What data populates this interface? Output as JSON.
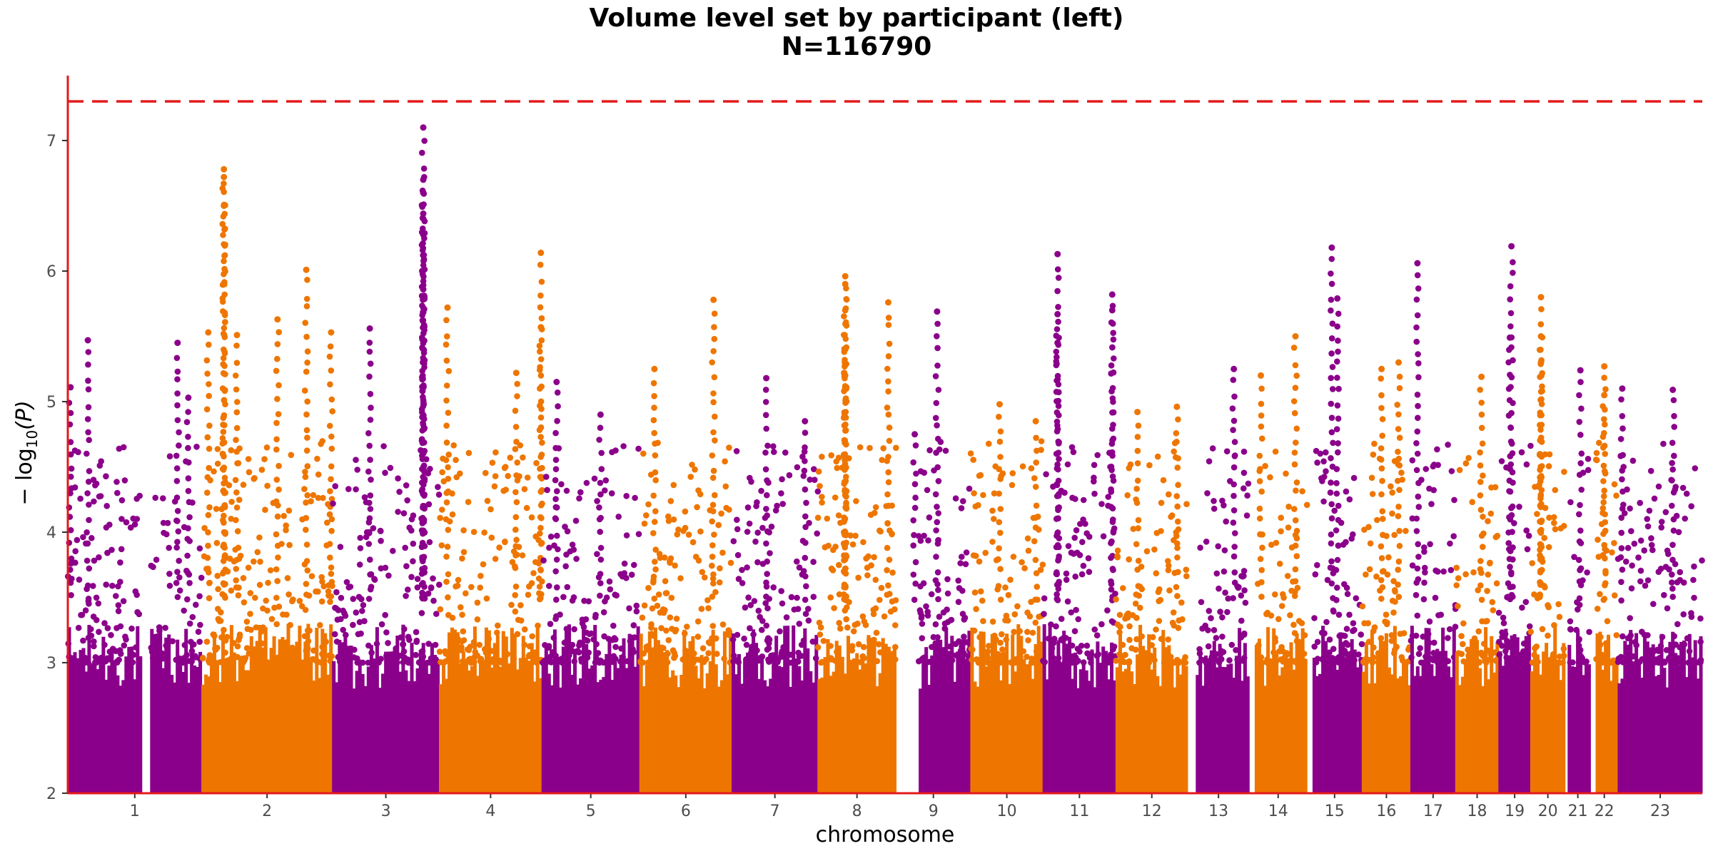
{
  "chart_data": {
    "type": "scatter",
    "title": "Volume level set by participant (left)",
    "subtitle": "N=116790",
    "xlabel": "chromosome",
    "ylabel_parts": {
      "prefix": "− log",
      "subscript": "10",
      "suffix": "(P)"
    },
    "ylim": [
      2,
      7.5
    ],
    "y_ticks": [
      2,
      3,
      4,
      5,
      6,
      7
    ],
    "threshold": 7.3,
    "colors": {
      "odd": "#8b008b",
      "even": "#ee7600",
      "threshold": "#e31a1c",
      "axis": "#e31a1c"
    },
    "chromosomes": [
      {
        "label": "1",
        "width": 248,
        "peaks": [
          {
            "pos": 0.02,
            "y": 5.11
          },
          {
            "pos": 0.15,
            "y": 5.47
          },
          {
            "pos": 0.82,
            "y": 5.45
          },
          {
            "pos": 0.9,
            "y": 5.03
          }
        ],
        "gap": [
          0.55,
          0.62
        ]
      },
      {
        "label": "2",
        "width": 242,
        "peaks": [
          {
            "pos": 0.05,
            "y": 5.53
          },
          {
            "pos": 0.17,
            "y": 6.78
          },
          {
            "pos": 0.17,
            "y": 6.72
          },
          {
            "pos": 0.17,
            "y": 6.5
          },
          {
            "pos": 0.27,
            "y": 5.51
          },
          {
            "pos": 0.58,
            "y": 5.63
          },
          {
            "pos": 0.8,
            "y": 6.01
          },
          {
            "pos": 0.99,
            "y": 5.53
          }
        ]
      },
      {
        "label": "3",
        "width": 198,
        "peaks": [
          {
            "pos": 0.35,
            "y": 5.56
          },
          {
            "pos": 0.85,
            "y": 7.1
          },
          {
            "pos": 0.85,
            "y": 6.7
          },
          {
            "pos": 0.85,
            "y": 6.6
          },
          {
            "pos": 0.85,
            "y": 6.44
          },
          {
            "pos": 0.85,
            "y": 6.28
          },
          {
            "pos": 0.85,
            "y": 5.86
          }
        ]
      },
      {
        "label": "4",
        "width": 190,
        "peaks": [
          {
            "pos": 0.08,
            "y": 5.72
          },
          {
            "pos": 0.75,
            "y": 5.22
          },
          {
            "pos": 0.99,
            "y": 6.14
          },
          {
            "pos": 0.99,
            "y": 5.57
          }
        ]
      },
      {
        "label": "5",
        "width": 181,
        "peaks": [
          {
            "pos": 0.15,
            "y": 5.15
          },
          {
            "pos": 0.6,
            "y": 4.9
          }
        ]
      },
      {
        "label": "6",
        "width": 171,
        "peaks": [
          {
            "pos": 0.16,
            "y": 5.25
          },
          {
            "pos": 0.8,
            "y": 5.78
          }
        ]
      },
      {
        "label": "7",
        "width": 159,
        "peaks": [
          {
            "pos": 0.4,
            "y": 5.18
          },
          {
            "pos": 0.85,
            "y": 4.85
          }
        ]
      },
      {
        "label": "8",
        "width": 145,
        "peaks": [
          {
            "pos": 0.35,
            "y": 5.96
          },
          {
            "pos": 0.35,
            "y": 5.9
          },
          {
            "pos": 0.35,
            "y": 5.7
          },
          {
            "pos": 0.35,
            "y": 5.4
          },
          {
            "pos": 0.35,
            "y": 5.2
          },
          {
            "pos": 0.9,
            "y": 5.76
          }
        ]
      },
      {
        "label": "9",
        "width": 138,
        "peaks": [
          {
            "pos": 0.55,
            "y": 5.69
          },
          {
            "pos": 0.25,
            "y": 4.75
          }
        ],
        "gap": [
          0.0,
          0.3
        ]
      },
      {
        "label": "10",
        "width": 134,
        "peaks": [
          {
            "pos": 0.4,
            "y": 4.98
          },
          {
            "pos": 0.9,
            "y": 4.85
          }
        ]
      },
      {
        "label": "11",
        "width": 135,
        "peaks": [
          {
            "pos": 0.2,
            "y": 6.13
          },
          {
            "pos": 0.2,
            "y": 5.67
          },
          {
            "pos": 0.2,
            "y": 5.45
          },
          {
            "pos": 0.95,
            "y": 5.82
          },
          {
            "pos": 0.95,
            "y": 5.7
          }
        ]
      },
      {
        "label": "12",
        "width": 133,
        "peaks": [
          {
            "pos": 0.3,
            "y": 4.92
          },
          {
            "pos": 0.85,
            "y": 4.96
          }
        ]
      },
      {
        "label": "13",
        "width": 114,
        "peaks": [
          {
            "pos": 0.75,
            "y": 5.25
          }
        ],
        "gap": [
          0.0,
          0.15
        ]
      },
      {
        "label": "14",
        "width": 107,
        "peaks": [
          {
            "pos": 0.2,
            "y": 5.2
          },
          {
            "pos": 0.8,
            "y": 5.5
          }
        ],
        "gap": [
          0.0,
          0.12
        ]
      },
      {
        "label": "15",
        "width": 102,
        "peaks": [
          {
            "pos": 0.45,
            "y": 6.18
          },
          {
            "pos": 0.55,
            "y": 5.79
          }
        ],
        "gap": [
          0.0,
          0.12
        ]
      },
      {
        "label": "16",
        "width": 90,
        "peaks": [
          {
            "pos": 0.4,
            "y": 5.25
          },
          {
            "pos": 0.75,
            "y": 5.3
          }
        ]
      },
      {
        "label": "17",
        "width": 83,
        "peaks": [
          {
            "pos": 0.15,
            "y": 6.06
          }
        ]
      },
      {
        "label": "18",
        "width": 80,
        "peaks": [
          {
            "pos": 0.6,
            "y": 5.19
          }
        ]
      },
      {
        "label": "19",
        "width": 59,
        "peaks": [
          {
            "pos": 0.4,
            "y": 6.19
          },
          {
            "pos": 0.35,
            "y": 5.49
          }
        ]
      },
      {
        "label": "20",
        "width": 64,
        "peaks": [
          {
            "pos": 0.3,
            "y": 5.8
          },
          {
            "pos": 0.3,
            "y": 5.5
          },
          {
            "pos": 0.3,
            "y": 5.3
          }
        ]
      },
      {
        "label": "21",
        "width": 47,
        "peaks": [
          {
            "pos": 0.6,
            "y": 5.24
          }
        ],
        "gap": [
          0.0,
          0.15
        ]
      },
      {
        "label": "22",
        "width": 51,
        "peaks": [
          {
            "pos": 0.5,
            "y": 5.27
          },
          {
            "pos": 0.5,
            "y": 5.05
          }
        ],
        "gap": [
          0.0,
          0.2
        ]
      },
      {
        "label": "23",
        "width": 156,
        "peaks": [
          {
            "pos": 0.05,
            "y": 5.1
          },
          {
            "pos": 0.65,
            "y": 5.09
          }
        ]
      }
    ]
  }
}
